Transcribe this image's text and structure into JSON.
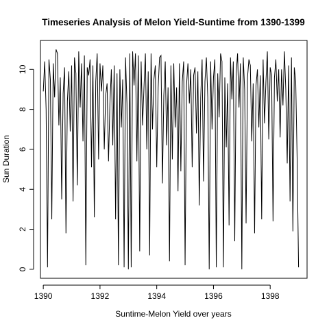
{
  "chart_data": {
    "type": "line",
    "title": "Timeseries Analysis of Melon Yield-Suntime from 1390-1399",
    "xlabel": "Suntime-Melon Yield over years",
    "ylabel": "Sun Duration",
    "xlim": [
      1389.9,
      1399.3
    ],
    "ylim": [
      -0.45,
      11.45
    ],
    "xticks": [
      1390,
      1392,
      1394,
      1396,
      1398
    ],
    "xtick_labels": [
      "1390",
      "1392",
      "1394",
      "1396",
      "1398"
    ],
    "yticks": [
      0,
      2,
      4,
      6,
      8,
      10
    ],
    "ytick_labels": [
      "0",
      "2",
      "4",
      "6",
      "8",
      "10"
    ],
    "grid": false,
    "series": [
      {
        "x": [
          1390.0,
          1390.05,
          1390.1,
          1390.15,
          1390.2,
          1390.25,
          1390.3,
          1390.35,
          1390.4,
          1390.45,
          1390.5,
          1390.55,
          1390.6,
          1390.65,
          1390.7,
          1390.75,
          1390.8,
          1390.85,
          1390.9,
          1390.95,
          1391.0,
          1391.05,
          1391.1,
          1391.15,
          1391.2,
          1391.25,
          1391.3,
          1391.35,
          1391.4,
          1391.45,
          1391.5,
          1391.55,
          1391.6,
          1391.65,
          1391.7,
          1391.75,
          1391.8,
          1391.85,
          1391.9,
          1391.95,
          1392.0,
          1392.05,
          1392.1,
          1392.15,
          1392.2,
          1392.25,
          1392.3,
          1392.35,
          1392.4,
          1392.45,
          1392.5,
          1392.55,
          1392.6,
          1392.65,
          1392.7,
          1392.75,
          1392.8,
          1392.85,
          1392.9,
          1392.95,
          1393.0,
          1393.05,
          1393.1,
          1393.15,
          1393.2,
          1393.25,
          1393.3,
          1393.35,
          1393.4,
          1393.45,
          1393.5,
          1393.55,
          1393.6,
          1393.65,
          1393.7,
          1393.75,
          1393.8,
          1393.85,
          1393.9,
          1393.95,
          1394.0,
          1394.05,
          1394.1,
          1394.15,
          1394.2,
          1394.25,
          1394.3,
          1394.35,
          1394.4,
          1394.45,
          1394.5,
          1394.55,
          1394.6,
          1394.65,
          1394.7,
          1394.75,
          1394.8,
          1394.85,
          1394.9,
          1394.95,
          1395.0,
          1395.05,
          1395.1,
          1395.15,
          1395.2,
          1395.25,
          1395.3,
          1395.35,
          1395.4,
          1395.45,
          1395.5,
          1395.55,
          1395.6,
          1395.65,
          1395.7,
          1395.75,
          1395.8,
          1395.85,
          1395.9,
          1395.95,
          1396.0,
          1396.05,
          1396.1,
          1396.15,
          1396.2,
          1396.25,
          1396.3,
          1396.35,
          1396.4,
          1396.45,
          1396.5,
          1396.55,
          1396.6,
          1396.65,
          1396.7,
          1396.75,
          1396.8,
          1396.85,
          1396.9,
          1396.95,
          1397.0,
          1397.05,
          1397.1,
          1397.15,
          1397.2,
          1397.25,
          1397.3,
          1397.35,
          1397.4,
          1397.45,
          1397.5,
          1397.55,
          1397.6,
          1397.65,
          1397.7,
          1397.75,
          1397.8,
          1397.85,
          1397.9,
          1397.95,
          1398.0,
          1398.05,
          1398.1,
          1398.15,
          1398.2,
          1398.25,
          1398.3,
          1398.35,
          1398.4,
          1398.45,
          1398.5,
          1398.55,
          1398.6,
          1398.65,
          1398.7,
          1398.75,
          1398.8,
          1398.85,
          1398.9,
          1398.95,
          1399.0
        ],
        "y": [
          8.9,
          10.4,
          8.0,
          0.1,
          10.5,
          9.5,
          2.5,
          10.3,
          8.6,
          11.0,
          10.8,
          7.2,
          9.6,
          3.5,
          8.8,
          10.1,
          1.8,
          8.4,
          9.9,
          6.9,
          10.2,
          3.4,
          10.6,
          9.8,
          4.2,
          10.9,
          8.1,
          10.3,
          6.4,
          10.7,
          0.2,
          10.1,
          9.7,
          10.5,
          5.1,
          10.2,
          2.6,
          9.4,
          10.8,
          5.5,
          10.3,
          8.9,
          10.2,
          6.0,
          8.7,
          9.3,
          5.4,
          8.3,
          10.0,
          6.2,
          10.2,
          2.5,
          9.8,
          0.2,
          10.0,
          7.1,
          9.5,
          0.1,
          10.6,
          8.3,
          0.0,
          10.8,
          0.1,
          10.9,
          9.2,
          10.8,
          5.4,
          10.7,
          0.9,
          10.4,
          7.2,
          9.1,
          10.8,
          6.0,
          9.9,
          0.7,
          10.8,
          7.0,
          9.5,
          10.2,
          5.1,
          9.1,
          10.6,
          10.7,
          4.3,
          8.7,
          10.4,
          6.2,
          9.1,
          0.4,
          10.2,
          5.5,
          10.3,
          7.1,
          9.1,
          3.9,
          10.3,
          4.9,
          9.4,
          10.4,
          0.2,
          9.2,
          10.3,
          8.3,
          10.0,
          5.1,
          9.7,
          10.1,
          6.8,
          9.9,
          3.2,
          8.6,
          10.5,
          4.4,
          9.4,
          10.6,
          8.6,
          0.0,
          10.4,
          7.0,
          9.6,
          10.5,
          0.1,
          9.8,
          7.6,
          10.8,
          10.4,
          0.1,
          9.6,
          6.1,
          9.3,
          2.2,
          10.6,
          8.5,
          10.4,
          1.4,
          9.8,
          10.8,
          8.1,
          10.3,
          0.0,
          10.6,
          9.0,
          2.3,
          9.6,
          10.5,
          10.2,
          6.4,
          9.3,
          1.8,
          9.2,
          10.0,
          7.1,
          9.7,
          2.5,
          10.5,
          7.3,
          9.4,
          10.9,
          6.5,
          10.1,
          9.7,
          2.4,
          9.6,
          10.5,
          8.4,
          10.0,
          6.6,
          10.0,
          8.2,
          10.9,
          9.0,
          5.3,
          10.2,
          3.4,
          10.6,
          1.9,
          10.1,
          9.4,
          5.5,
          0.1
        ]
      }
    ]
  }
}
